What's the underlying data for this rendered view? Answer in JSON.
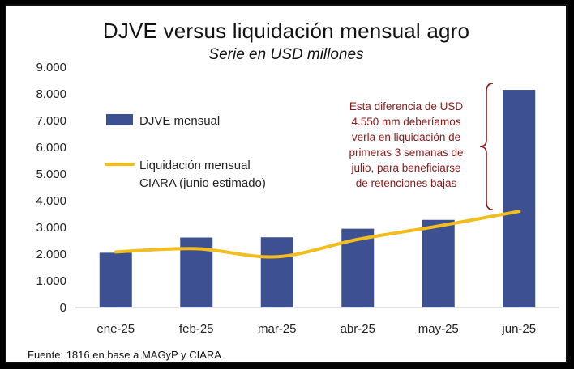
{
  "chart_data": {
    "type": "bar",
    "title": "DJVE versus liquidación mensual agro",
    "subtitle": "Serie en USD millones",
    "categories": [
      "ene-25",
      "feb-25",
      "mar-25",
      "abr-25",
      "may-25",
      "jun-25"
    ],
    "series": [
      {
        "name": "DJVE mensual",
        "kind": "bar",
        "color": "#3d5192",
        "values": [
          2050,
          2620,
          2630,
          2950,
          3280,
          8150
        ]
      },
      {
        "name": "Liquidación mensual CIARA (junio estimado)",
        "kind": "line",
        "color": "#f2bd1d",
        "values": [
          2080,
          2200,
          1900,
          2550,
          3050,
          3600
        ]
      }
    ],
    "y_ticks": [
      "0",
      "1.000",
      "2.000",
      "3.000",
      "4.000",
      "5.000",
      "6.000",
      "7.000",
      "8.000",
      "9.000"
    ],
    "ylim": [
      0,
      9000
    ],
    "legend": [
      {
        "label_lines": [
          "DJVE mensual"
        ]
      },
      {
        "label_lines": [
          "Liquidación mensual",
          "CIARA (junio estimado)"
        ]
      }
    ],
    "annotation": {
      "lines": [
        "Esta diferencia de USD",
        "4.550 mm deberíamos",
        "verla en liquidación de",
        "primeras 3 semanas de",
        "julio, para beneficiarse",
        "de retenciones bajas"
      ],
      "color": "#8b1a1a"
    },
    "source": "Fuente: 1816 en base a MAGyP y CIARA"
  }
}
